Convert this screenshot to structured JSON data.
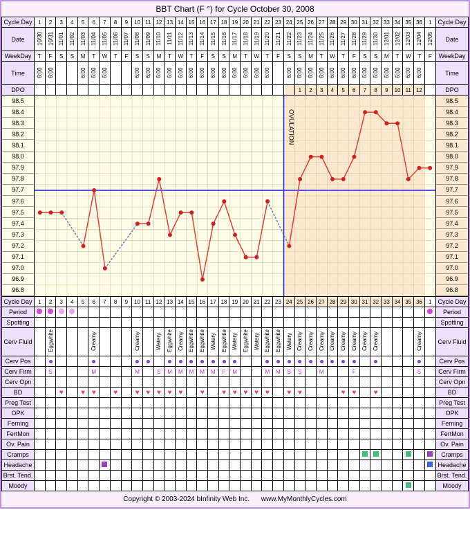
{
  "title": "BBT Chart (F °) for Cycle October 30, 2008",
  "footer_left": "Copyright © 2003-2024 bInfinity Web Inc.",
  "footer_right": "www.MyMonthlyCycles.com",
  "labels": {
    "cycle_day": "Cycle Day",
    "date": "Date",
    "weekday": "WeekDay",
    "time": "Time",
    "dpo": "DPO",
    "period": "Period",
    "spotting": "Spotting",
    "cerv_fluid": "Cerv Fluid",
    "cerv_pos": "Cerv Pos",
    "cerv_firm": "Cerv Firm",
    "cerv_opn": "Cerv Opn",
    "bd": "BD",
    "preg_test": "Preg Test",
    "opk": "OPK",
    "ferning": "Ferning",
    "fertmon": "FertMon",
    "ov_pain": "Ov. Pain",
    "cramps": "Cramps",
    "headache": "Headache",
    "brst_tend": "Brst. Tend.",
    "moody": "Moody"
  },
  "days": [
    1,
    2,
    3,
    4,
    5,
    6,
    7,
    8,
    9,
    10,
    11,
    12,
    13,
    14,
    15,
    16,
    17,
    18,
    19,
    20,
    21,
    22,
    23,
    24,
    25,
    26,
    27,
    28,
    29,
    30,
    31,
    32,
    33,
    34,
    35,
    36,
    1
  ],
  "dates": [
    "10/30",
    "10/31",
    "11/01",
    "11/02",
    "11/03",
    "11/04",
    "11/05",
    "11/06",
    "11/07",
    "11/08",
    "11/09",
    "11/10",
    "11/11",
    "11/12",
    "11/13",
    "11/14",
    "11/15",
    "11/16",
    "11/17",
    "11/18",
    "11/19",
    "11/20",
    "11/21",
    "11/22",
    "11/23",
    "11/24",
    "11/25",
    "11/26",
    "11/27",
    "11/28",
    "11/29",
    "11/30",
    "12/01",
    "12/02",
    "12/03",
    "12/04",
    "12/05"
  ],
  "weekdays": [
    "T",
    "F",
    "S",
    "S",
    "M",
    "T",
    "W",
    "T",
    "F",
    "S",
    "S",
    "M",
    "T",
    "W",
    "T",
    "F",
    "S",
    "S",
    "M",
    "T",
    "W",
    "T",
    "F",
    "S",
    "S",
    "M",
    "T",
    "W",
    "T",
    "F",
    "S",
    "S",
    "M",
    "T",
    "W",
    "T",
    "F"
  ],
  "times": [
    "6:00",
    "6:00",
    "",
    "",
    "6:00",
    "6:00",
    "6:00",
    "",
    "",
    "6:00",
    "6:00",
    "6:00",
    "6:00",
    "6:00",
    "6:00",
    "6:00",
    "6:00",
    "6:00",
    "6:00",
    "6:00",
    "6:00",
    "6:00",
    "",
    "6:00",
    "6:00",
    "6:00",
    "6:00",
    "6:00",
    "6:00",
    "6:00",
    "6:00",
    "6:00",
    "6:00",
    "6:00",
    "6:00",
    "6:00",
    ""
  ],
  "dpo": [
    "",
    "",
    "",
    "",
    "",
    "",
    "",
    "",
    "",
    "",
    "",
    "",
    "",
    "",
    "",
    "",
    "",
    "",
    "",
    "",
    "",
    "",
    "",
    "",
    "1",
    "2",
    "3",
    "4",
    "5",
    "6",
    "7",
    "8",
    "9",
    "10",
    "11",
    "12",
    ""
  ],
  "temp_scale": [
    98.5,
    98.4,
    98.3,
    98.2,
    98.1,
    98.0,
    97.9,
    97.8,
    97.7,
    97.6,
    97.5,
    97.4,
    97.3,
    97.2,
    97.1,
    97.0,
    96.9,
    96.8
  ],
  "temps": [
    97.5,
    97.5,
    97.5,
    null,
    97.2,
    97.7,
    97.0,
    null,
    null,
    97.4,
    97.4,
    97.8,
    97.3,
    97.5,
    97.5,
    96.9,
    97.4,
    97.6,
    97.3,
    97.1,
    97.1,
    97.6,
    null,
    97.2,
    97.8,
    98.0,
    98.0,
    97.8,
    97.8,
    98.0,
    98.4,
    98.4,
    98.3,
    98.3,
    97.8,
    97.9,
    97.9
  ],
  "ovulation_day": 24,
  "coverline": 97.7,
  "colors": {
    "line": "#e04040",
    "dot": "#d02020",
    "dashed": "#6080c0",
    "ovulation_line": "#2020e0",
    "coverline": "#2020e0",
    "follicular_bg": "#fffde8",
    "luteal_bg": "#fde8d0",
    "grid": "#d0c890"
  },
  "period": [
    "full",
    "full",
    "half",
    "half",
    "",
    "",
    "",
    "",
    "",
    "",
    "",
    "",
    "",
    "",
    "",
    "",
    "",
    "",
    "",
    "",
    "",
    "",
    "",
    "",
    "",
    "",
    "",
    "",
    "",
    "",
    "",
    "",
    "",
    "",
    "",
    "",
    "full"
  ],
  "cerv_fluid": [
    "",
    "Eggwhite",
    "",
    "",
    "",
    "Creamy",
    "",
    "",
    "",
    "Creamy",
    "",
    "Watery",
    "Eggwhite",
    "Creamy",
    "Eggwhite",
    "Eggwhite",
    "Watery",
    "Eggwhite",
    "Watery",
    "Eggwhite",
    "Watery",
    "Eggwhite",
    "Eggwhite",
    "Watery",
    "Creamy",
    "Creamy",
    "Creamy",
    "Creamy",
    "Creamy",
    "Creamy",
    "Creamy",
    "Creamy",
    "",
    "",
    "",
    "Creamy",
    ""
  ],
  "cerv_pos": [
    "",
    "d",
    "",
    "",
    "",
    "d",
    "",
    "",
    "",
    "d",
    "d",
    "",
    "d",
    "d",
    "d",
    "d",
    "d",
    "d",
    "d",
    "",
    "",
    "d",
    "d",
    "d",
    "d",
    "d",
    "d",
    "d",
    "d",
    "d",
    "",
    "d",
    "",
    "",
    "",
    "d",
    ""
  ],
  "cerv_firm": [
    "",
    "S",
    "",
    "",
    "",
    "M",
    "",
    "",
    "",
    "M",
    "",
    "S",
    "M",
    "M",
    "M",
    "M",
    "M",
    "F",
    "M",
    "",
    "",
    "M",
    "M",
    "S",
    "S",
    "",
    "M",
    "",
    "",
    "F",
    "",
    "",
    "",
    "",
    "",
    "S",
    ""
  ],
  "bd_days": [
    3,
    5,
    6,
    8,
    10,
    11,
    12,
    13,
    14,
    16,
    18,
    19,
    20,
    21,
    22,
    24,
    25,
    29,
    30,
    32
  ],
  "cramps_days": {
    "31": "green",
    "32": "green",
    "35": "green",
    "37": "purple"
  },
  "headache_days": {
    "7": "purple",
    "37": "blue"
  },
  "moody_days": {
    "35": "green"
  },
  "ovulation_label": "OVULATION"
}
